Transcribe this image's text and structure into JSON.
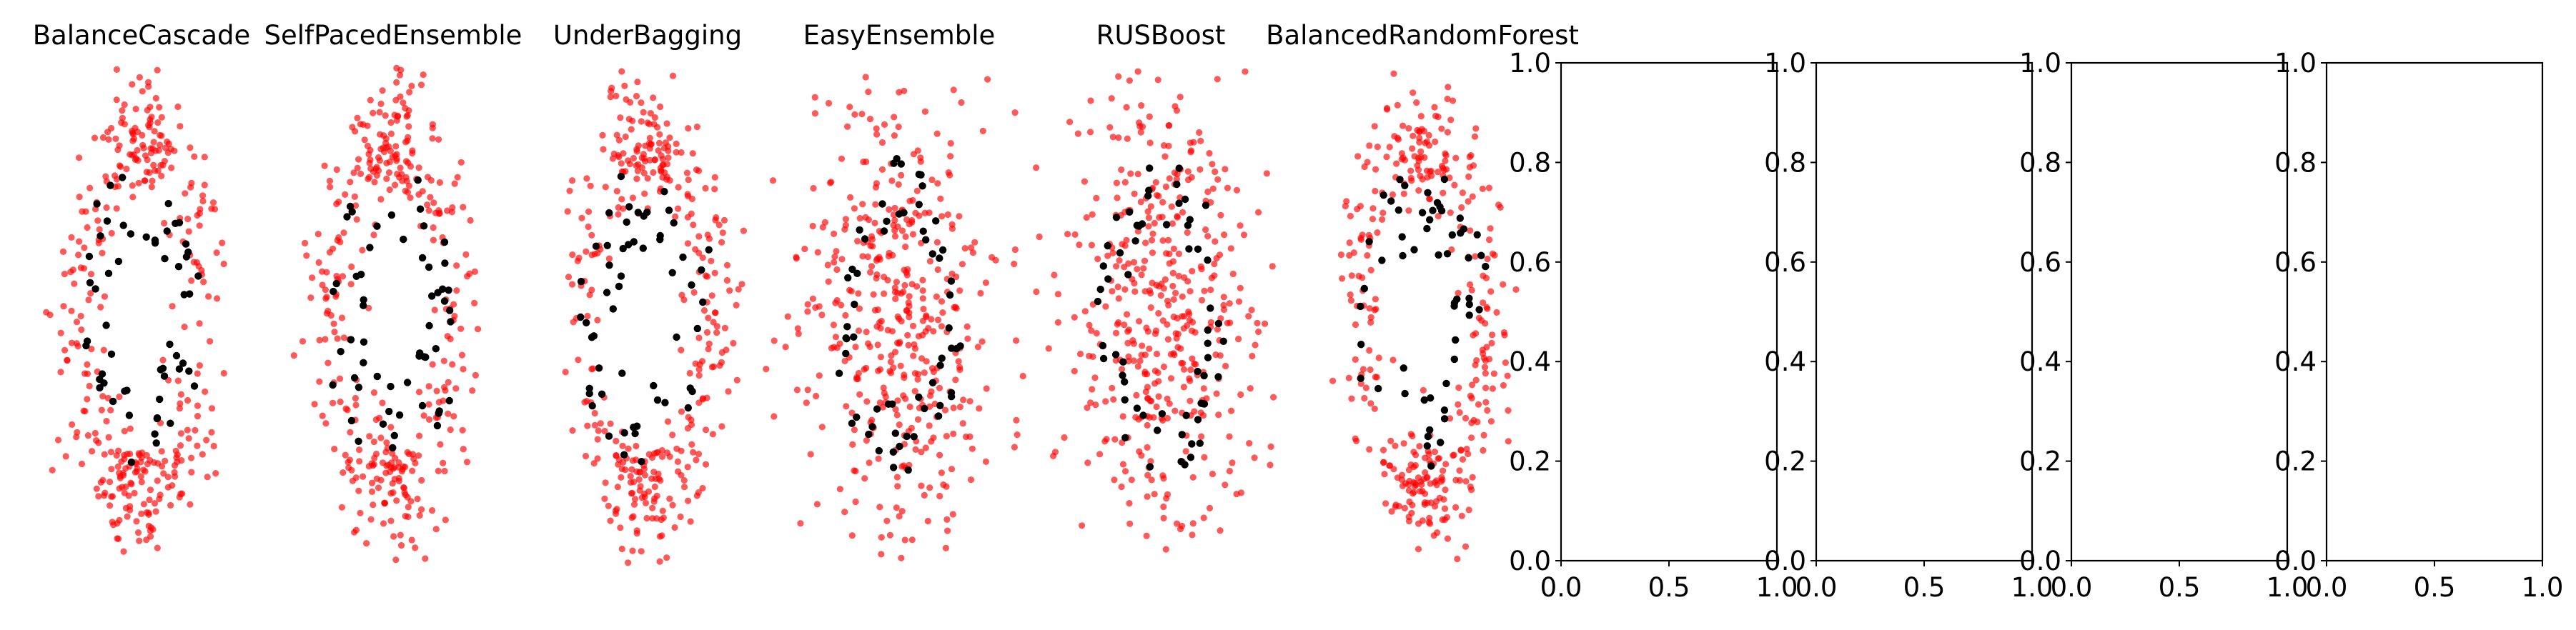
{
  "figure": {
    "point_colors": {
      "minority": "#000000",
      "majority": "#ff0000"
    }
  },
  "chart_data": [
    {
      "type": "scatter",
      "title": "BalanceCascade",
      "axis_visible": false,
      "pattern": "two-moons",
      "minority_color": "#000000",
      "majority_color": "#ff0000"
    },
    {
      "type": "scatter",
      "title": "SelfPacedEnsemble",
      "axis_visible": false,
      "pattern": "two-moons",
      "minority_color": "#000000",
      "majority_color": "#ff0000"
    },
    {
      "type": "scatter",
      "title": "UnderBagging",
      "axis_visible": false,
      "pattern": "two-moons",
      "minority_color": "#000000",
      "majority_color": "#ff0000"
    },
    {
      "type": "scatter",
      "title": "EasyEnsemble",
      "axis_visible": false,
      "pattern": "gaussian-cluster",
      "minority_color": "#000000",
      "majority_color": "#ff0000"
    },
    {
      "type": "scatter",
      "title": "RUSBoost",
      "axis_visible": false,
      "pattern": "gaussian-cluster",
      "minority_color": "#000000",
      "majority_color": "#ff0000"
    },
    {
      "type": "scatter",
      "title": "BalancedRandomForest",
      "axis_visible": false,
      "pattern": "two-moons",
      "minority_color": "#000000",
      "majority_color": "#ff0000"
    },
    {
      "type": "scatter",
      "title": "",
      "axis_visible": true,
      "xlim": [
        0.0,
        1.0
      ],
      "ylim": [
        0.0,
        1.0
      ],
      "xticks": [
        "0.0",
        "0.5",
        "1.0"
      ],
      "yticks": [
        "0.0",
        "0.2",
        "0.4",
        "0.6",
        "0.8",
        "1.0"
      ]
    },
    {
      "type": "scatter",
      "title": "",
      "axis_visible": true,
      "xlim": [
        0.0,
        1.0
      ],
      "ylim": [
        0.0,
        1.0
      ],
      "xticks": [
        "0.0",
        "0.5",
        "1.0"
      ],
      "yticks": [
        "0.0",
        "0.2",
        "0.4",
        "0.6",
        "0.8",
        "1.0"
      ]
    },
    {
      "type": "scatter",
      "title": "",
      "axis_visible": true,
      "xlim": [
        0.0,
        1.0
      ],
      "ylim": [
        0.0,
        1.0
      ],
      "xticks": [
        "0.0",
        "0.5",
        "1.0"
      ],
      "yticks": [
        "0.0",
        "0.2",
        "0.4",
        "0.6",
        "0.8",
        "1.0"
      ]
    },
    {
      "type": "scatter",
      "title": "",
      "axis_visible": true,
      "xlim": [
        0.0,
        1.0
      ],
      "ylim": [
        0.0,
        1.0
      ],
      "xticks": [
        "0.0",
        "0.5",
        "1.0"
      ],
      "yticks": [
        "0.0",
        "0.2",
        "0.4",
        "0.6",
        "0.8",
        "1.0"
      ]
    }
  ]
}
